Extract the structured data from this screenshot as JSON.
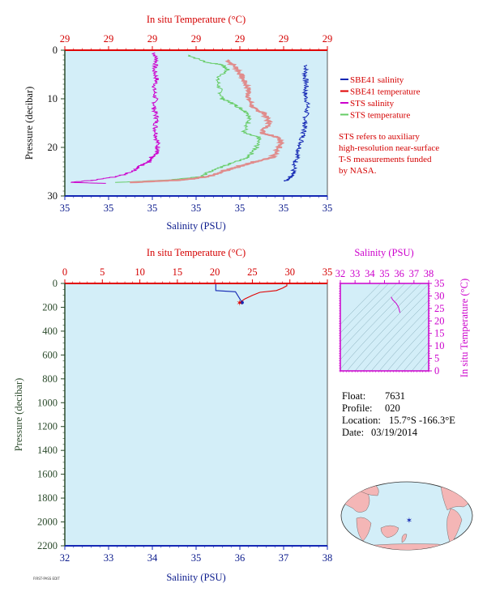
{
  "chart_data": [
    {
      "type": "line",
      "panel": "top",
      "title_top_axis": "In situ Temperature (°C)",
      "xlabel": "Salinity (PSU)",
      "ylabel": "Pressure (decibar)",
      "ylim": [
        0,
        30
      ],
      "y_ticks": [
        "0",
        "10",
        "20",
        "30"
      ],
      "top_ticks": [
        "29",
        "29",
        "29",
        "29",
        "29",
        "29",
        "29"
      ],
      "bottom_ticks": [
        "35",
        "35",
        "35",
        "35",
        "35",
        "35",
        "35"
      ],
      "legend_placement": "right",
      "legend": [
        {
          "label": "SBE41 salinity",
          "color": "#1428b4"
        },
        {
          "label": "SBE41 temperature",
          "color": "#e00000"
        },
        {
          "label": "STS salinity",
          "color": "#cc00cc"
        },
        {
          "label": "STS temperature",
          "color": "#66cc66"
        }
      ],
      "note": [
        "STS refers to auxiliary",
        "high-resolution near-surface",
        "T-S measurements funded",
        "by NASA."
      ],
      "series": [
        {
          "name": "STS salinity",
          "color": "#cc00cc",
          "points": [
            [
              0.34,
              0.5
            ],
            [
              0.35,
              2
            ],
            [
              0.34,
              4
            ],
            [
              0.35,
              6
            ],
            [
              0.34,
              8
            ],
            [
              0.345,
              10
            ],
            [
              0.34,
              12
            ],
            [
              0.35,
              14
            ],
            [
              0.345,
              16
            ],
            [
              0.35,
              18
            ],
            [
              0.355,
              20
            ],
            [
              0.35,
              21
            ],
            [
              0.33,
              22
            ],
            [
              0.32,
              23
            ],
            [
              0.28,
              24
            ],
            [
              0.26,
              25
            ],
            [
              0.2,
              26
            ],
            [
              0.1,
              26.8
            ],
            [
              0.02,
              27.2
            ],
            [
              0.15,
              27.4
            ]
          ]
        },
        {
          "name": "STS temperature",
          "color": "#66cc66",
          "points": [
            [
              0.47,
              1
            ],
            [
              0.54,
              2.5
            ],
            [
              0.6,
              3
            ],
            [
              0.62,
              4
            ],
            [
              0.58,
              6
            ],
            [
              0.59,
              8
            ],
            [
              0.6,
              10
            ],
            [
              0.64,
              11
            ],
            [
              0.67,
              12
            ],
            [
              0.7,
              13
            ],
            [
              0.7,
              15
            ],
            [
              0.68,
              17
            ],
            [
              0.74,
              18
            ],
            [
              0.73,
              20
            ],
            [
              0.7,
              22
            ],
            [
              0.65,
              23
            ],
            [
              0.6,
              24
            ],
            [
              0.55,
              25
            ],
            [
              0.52,
              26
            ],
            [
              0.4,
              26.7
            ],
            [
              0.2,
              27.2
            ]
          ]
        },
        {
          "name": "SBE41 temperature",
          "color": "#e08c8c",
          "points": [
            [
              0.62,
              2
            ],
            [
              0.66,
              4
            ],
            [
              0.68,
              6
            ],
            [
              0.7,
              8
            ],
            [
              0.7,
              10
            ],
            [
              0.72,
              12
            ],
            [
              0.76,
              13
            ],
            [
              0.78,
              15
            ],
            [
              0.75,
              17
            ],
            [
              0.82,
              18
            ],
            [
              0.82,
              20
            ],
            [
              0.79,
              22
            ],
            [
              0.72,
              23
            ],
            [
              0.66,
              24
            ],
            [
              0.6,
              25
            ],
            [
              0.55,
              26
            ],
            [
              0.45,
              26.7
            ],
            [
              0.25,
              27.2
            ]
          ]
        },
        {
          "name": "SBE41 salinity",
          "color": "#1428b4",
          "points": [
            [
              0.92,
              3
            ],
            [
              0.915,
              5
            ],
            [
              0.92,
              7
            ],
            [
              0.915,
              9
            ],
            [
              0.925,
              11
            ],
            [
              0.92,
              13
            ],
            [
              0.915,
              15
            ],
            [
              0.91,
              17
            ],
            [
              0.9,
              19
            ],
            [
              0.89,
              21
            ],
            [
              0.88,
              23
            ],
            [
              0.87,
              25
            ],
            [
              0.86,
              26
            ],
            [
              0.84,
              27
            ]
          ]
        }
      ]
    },
    {
      "type": "line",
      "panel": "bottom",
      "title_top_axis": "In situ Temperature (°C)",
      "xlabel": "Salinity (PSU)",
      "ylabel": "Pressure (decibar)",
      "xlim_salinity": [
        32,
        38
      ],
      "xlim_temperature": [
        0,
        35
      ],
      "ylim": [
        0,
        2200
      ],
      "top_ticks": [
        "0",
        "5",
        "10",
        "15",
        "20",
        "25",
        "30",
        "35"
      ],
      "bottom_ticks": [
        "32",
        "33",
        "34",
        "35",
        "36",
        "37",
        "38"
      ],
      "y_ticks": [
        "0",
        "200",
        "400",
        "600",
        "800",
        "1000",
        "1200",
        "1400",
        "1600",
        "1800",
        "2000",
        "2200"
      ],
      "series": [
        {
          "name": "Salinity",
          "color": "#1428b4",
          "points": [
            [
              35.45,
              0
            ],
            [
              35.45,
              60
            ],
            [
              35.9,
              70
            ],
            [
              35.95,
              100
            ],
            [
              36.0,
              130
            ],
            [
              36.05,
              160
            ]
          ]
        },
        {
          "name": "Temperature",
          "color": "#e00000",
          "points": [
            [
              29.6,
              0
            ],
            [
              29.6,
              20
            ],
            [
              29.0,
              40
            ],
            [
              28.2,
              60
            ],
            [
              26.0,
              75
            ],
            [
              25.0,
              100
            ],
            [
              24.0,
              130
            ],
            [
              23.3,
              160
            ]
          ]
        }
      ],
      "last_point": {
        "salinity": 36.05,
        "temperature": 23.3,
        "pressure": 160
      }
    },
    {
      "type": "scatter",
      "panel": "ts_diagram",
      "title": "Salinity (PSU)",
      "x_ticks": [
        "32",
        "33",
        "34",
        "35",
        "36",
        "37",
        "38"
      ],
      "y_ticks": [
        "0",
        "5",
        "10",
        "15",
        "20",
        "25",
        "30",
        "35"
      ],
      "ylabel": "In situ Temperature (°C)",
      "xlim": [
        32,
        38
      ],
      "ylim": [
        0,
        35
      ],
      "series": [
        {
          "name": "T-S",
          "color": "#cc00cc",
          "points": [
            [
              35.45,
              29.6
            ],
            [
              35.55,
              28.5
            ],
            [
              35.8,
              27
            ],
            [
              35.95,
              25.5
            ],
            [
              36.05,
              23.3
            ]
          ]
        }
      ]
    }
  ],
  "float_info": {
    "float_label": "Float:",
    "float_value": "7631",
    "profile_label": "Profile:",
    "profile_value": "020",
    "location_label": "Location:",
    "location_value": "15.7°S  -166.3°E",
    "date_label": "Date:",
    "date_value": "03/19/2014"
  },
  "map": {
    "marker_lat": -15.7,
    "marker_lon": -166.3
  },
  "footer_text": "FIRST-PASS EDIT"
}
